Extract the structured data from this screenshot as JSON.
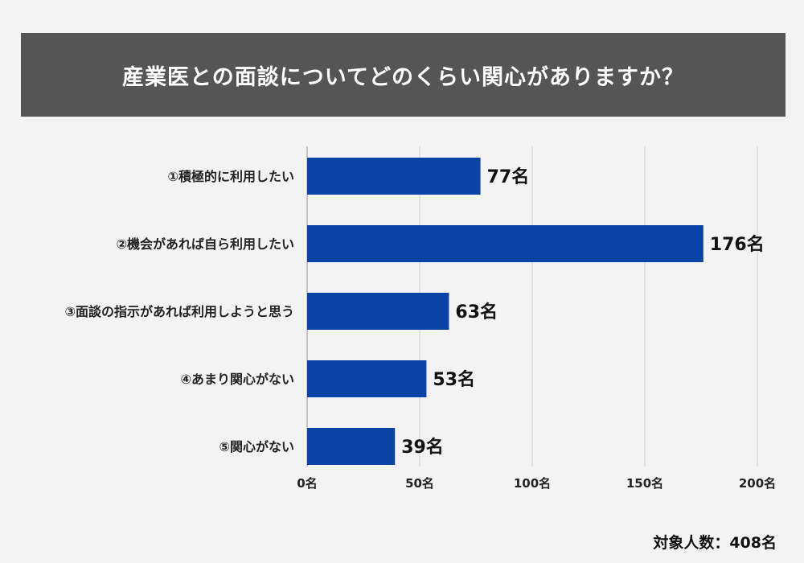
{
  "chart_data": {
    "type": "bar",
    "orientation": "horizontal",
    "title": "産業医との面談についてどのくらい関心がありますか？",
    "categories": [
      "①積極的に利用したい",
      "②機会があれば自ら利用したい",
      "③面談の指示があれば利用しようと思う",
      "④あまり関心がない",
      "⑤関心がない"
    ],
    "values": [
      77,
      176,
      63,
      53,
      39
    ],
    "value_labels": [
      "77名",
      "176名",
      "63名",
      "53名",
      "39名"
    ],
    "xlim": [
      0,
      200
    ],
    "xticks": [
      0,
      50,
      100,
      150,
      200
    ],
    "xtick_labels": [
      "0名",
      "50名",
      "100名",
      "150名",
      "200名"
    ],
    "grid": true,
    "bar_color": "#0b43a5"
  },
  "footnote": "対象人数：408名"
}
